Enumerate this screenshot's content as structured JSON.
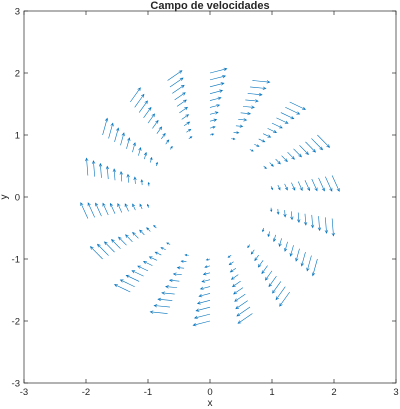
{
  "chart_data": {
    "type": "quiver",
    "title": "Campo de velocidades",
    "xlabel": "x",
    "ylabel": "y",
    "xlim": [
      -3,
      3
    ],
    "ylim": [
      -3,
      3
    ],
    "xticks": [
      -3,
      -2,
      -1,
      0,
      1,
      2,
      3
    ],
    "yticks": [
      -3,
      -2,
      -1,
      0,
      1,
      2,
      3
    ],
    "grid": false,
    "box": true,
    "color": "#0072BD",
    "field": {
      "description": "Vector field sampled on concentric rings",
      "r_inner": 1.0,
      "r_outer": 2.0,
      "radial_samples": 10,
      "angular_samples": 18
    }
  }
}
